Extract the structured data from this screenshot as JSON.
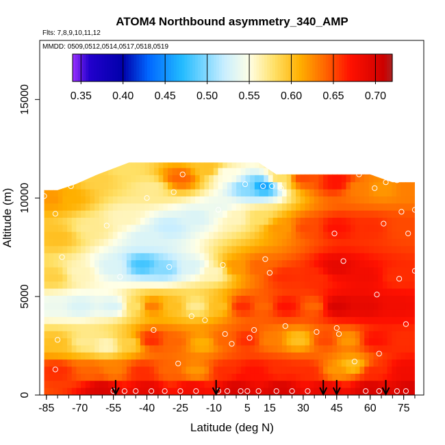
{
  "chart_data": {
    "type": "heatmap",
    "title": "ATOM4 Northbound asymmetry_340_AMP",
    "flights_label": "Flts: 7,8,9,10,11,12",
    "mmdd_label": "MMDD: 0509,0512,0514,0517,0518,0519",
    "xlabel": "Latitude (deg N)",
    "ylabel": "Altitude (m)",
    "xlim": [
      -88,
      84
    ],
    "ylim": [
      0,
      18000
    ],
    "x_ticks": [
      -85,
      -70,
      -55,
      -40,
      -25,
      -10,
      5,
      15,
      30,
      45,
      60,
      75
    ],
    "x_tick_labels": [
      "-85",
      "-70",
      "-55",
      "-40",
      "-25",
      "-10",
      "5",
      "15",
      "30",
      "45",
      "60",
      "75"
    ],
    "y_ticks": [
      0,
      5000,
      10000,
      15000
    ],
    "y_tick_labels": [
      "0",
      "5000",
      "10000",
      "15000"
    ],
    "colorbar": {
      "min": 0.34,
      "max": 0.72,
      "ticks": [
        0.35,
        0.4,
        0.45,
        0.5,
        0.55,
        0.6,
        0.65,
        0.7
      ],
      "tick_labels": [
        "0.35",
        "0.40",
        "0.45",
        "0.50",
        "0.55",
        "0.60",
        "0.65",
        "0.70"
      ],
      "stops": [
        {
          "v": 0.34,
          "c": "#9b30ff"
        },
        {
          "v": 0.36,
          "c": "#2200cc"
        },
        {
          "v": 0.4,
          "c": "#0000aa"
        },
        {
          "v": 0.43,
          "c": "#0066ff"
        },
        {
          "v": 0.47,
          "c": "#22bbff"
        },
        {
          "v": 0.52,
          "c": "#c8eeff"
        },
        {
          "v": 0.55,
          "c": "#ffffe6"
        },
        {
          "v": 0.58,
          "c": "#ffe066"
        },
        {
          "v": 0.61,
          "c": "#ffb000"
        },
        {
          "v": 0.64,
          "c": "#ff6600"
        },
        {
          "v": 0.67,
          "c": "#ff1100"
        },
        {
          "v": 0.71,
          "c": "#cc0000"
        },
        {
          "v": 0.72,
          "c": "#aa2222"
        }
      ]
    },
    "field_domain_alt": [
      {
        "x": -86,
        "top": 10400
      },
      {
        "x": -80,
        "top": 10400
      },
      {
        "x": -72,
        "top": 10700
      },
      {
        "x": -62,
        "top": 11200
      },
      {
        "x": -48,
        "top": 11800
      },
      {
        "x": -20,
        "top": 11800
      },
      {
        "x": 10,
        "top": 11800
      },
      {
        "x": 18,
        "top": 11200
      },
      {
        "x": 35,
        "top": 11200
      },
      {
        "x": 60,
        "top": 11200
      },
      {
        "x": 70,
        "top": 10800
      },
      {
        "x": 80,
        "top": 10800
      }
    ],
    "value_anchors": [
      {
        "x": -82,
        "y": 10000,
        "v": 0.62
      },
      {
        "x": -75,
        "y": 10000,
        "v": 0.61
      },
      {
        "x": -62,
        "y": 11000,
        "v": 0.59
      },
      {
        "x": -50,
        "y": 11500,
        "v": 0.58
      },
      {
        "x": -38,
        "y": 10500,
        "v": 0.57
      },
      {
        "x": -25,
        "y": 11000,
        "v": 0.64
      },
      {
        "x": -12,
        "y": 11500,
        "v": 0.6
      },
      {
        "x": -5,
        "y": 11200,
        "v": 0.55
      },
      {
        "x": 5,
        "y": 10500,
        "v": 0.5
      },
      {
        "x": 12,
        "y": 10600,
        "v": 0.46
      },
      {
        "x": 20,
        "y": 11000,
        "v": 0.58
      },
      {
        "x": 30,
        "y": 11000,
        "v": 0.65
      },
      {
        "x": 45,
        "y": 10800,
        "v": 0.67
      },
      {
        "x": 55,
        "y": 10500,
        "v": 0.63
      },
      {
        "x": 65,
        "y": 10500,
        "v": 0.62
      },
      {
        "x": 78,
        "y": 10500,
        "v": 0.63
      },
      {
        "x": -80,
        "y": 8000,
        "v": 0.6
      },
      {
        "x": -65,
        "y": 8500,
        "v": 0.57
      },
      {
        "x": -50,
        "y": 9000,
        "v": 0.56
      },
      {
        "x": -40,
        "y": 8000,
        "v": 0.53
      },
      {
        "x": -30,
        "y": 8500,
        "v": 0.52
      },
      {
        "x": -18,
        "y": 9000,
        "v": 0.53
      },
      {
        "x": -8,
        "y": 9500,
        "v": 0.54
      },
      {
        "x": 0,
        "y": 9000,
        "v": 0.56
      },
      {
        "x": 10,
        "y": 9000,
        "v": 0.58
      },
      {
        "x": 20,
        "y": 8500,
        "v": 0.62
      },
      {
        "x": 32,
        "y": 8500,
        "v": 0.65
      },
      {
        "x": 45,
        "y": 8500,
        "v": 0.67
      },
      {
        "x": 60,
        "y": 8500,
        "v": 0.66
      },
      {
        "x": 75,
        "y": 8500,
        "v": 0.65
      },
      {
        "x": -82,
        "y": 6000,
        "v": 0.59
      },
      {
        "x": -70,
        "y": 6200,
        "v": 0.56
      },
      {
        "x": -55,
        "y": 6500,
        "v": 0.53
      },
      {
        "x": -42,
        "y": 6600,
        "v": 0.48
      },
      {
        "x": -32,
        "y": 6400,
        "v": 0.5
      },
      {
        "x": -20,
        "y": 6500,
        "v": 0.53
      },
      {
        "x": -10,
        "y": 6200,
        "v": 0.56
      },
      {
        "x": 0,
        "y": 6500,
        "v": 0.62
      },
      {
        "x": 10,
        "y": 6500,
        "v": 0.64
      },
      {
        "x": 22,
        "y": 6000,
        "v": 0.66
      },
      {
        "x": 35,
        "y": 6000,
        "v": 0.66
      },
      {
        "x": 45,
        "y": 6500,
        "v": 0.69
      },
      {
        "x": 58,
        "y": 6000,
        "v": 0.68
      },
      {
        "x": 72,
        "y": 6000,
        "v": 0.66
      },
      {
        "x": -82,
        "y": 4500,
        "v": 0.54
      },
      {
        "x": -70,
        "y": 4500,
        "v": 0.53
      },
      {
        "x": -55,
        "y": 4500,
        "v": 0.53
      },
      {
        "x": -45,
        "y": 4500,
        "v": 0.58
      },
      {
        "x": -38,
        "y": 4500,
        "v": 0.63
      },
      {
        "x": -28,
        "y": 4500,
        "v": 0.6
      },
      {
        "x": -18,
        "y": 4500,
        "v": 0.57
      },
      {
        "x": -8,
        "y": 4500,
        "v": 0.6
      },
      {
        "x": 3,
        "y": 4500,
        "v": 0.66
      },
      {
        "x": 12,
        "y": 4500,
        "v": 0.64
      },
      {
        "x": 22,
        "y": 4500,
        "v": 0.67
      },
      {
        "x": 35,
        "y": 4500,
        "v": 0.64
      },
      {
        "x": 45,
        "y": 4500,
        "v": 0.7
      },
      {
        "x": 58,
        "y": 4500,
        "v": 0.69
      },
      {
        "x": 72,
        "y": 4500,
        "v": 0.68
      },
      {
        "x": -80,
        "y": 2600,
        "v": 0.6
      },
      {
        "x": -68,
        "y": 2700,
        "v": 0.57
      },
      {
        "x": -58,
        "y": 2500,
        "v": 0.56
      },
      {
        "x": -48,
        "y": 2600,
        "v": 0.59
      },
      {
        "x": -38,
        "y": 2800,
        "v": 0.66
      },
      {
        "x": -28,
        "y": 2700,
        "v": 0.64
      },
      {
        "x": -15,
        "y": 2600,
        "v": 0.61
      },
      {
        "x": -5,
        "y": 2800,
        "v": 0.64
      },
      {
        "x": 5,
        "y": 2800,
        "v": 0.66
      },
      {
        "x": 15,
        "y": 2800,
        "v": 0.63
      },
      {
        "x": 28,
        "y": 2800,
        "v": 0.6
      },
      {
        "x": 40,
        "y": 2800,
        "v": 0.65
      },
      {
        "x": 50,
        "y": 2800,
        "v": 0.62
      },
      {
        "x": 62,
        "y": 2800,
        "v": 0.67
      },
      {
        "x": 76,
        "y": 2800,
        "v": 0.66
      },
      {
        "x": -80,
        "y": 1200,
        "v": 0.66
      },
      {
        "x": -65,
        "y": 1200,
        "v": 0.64
      },
      {
        "x": -55,
        "y": 1200,
        "v": 0.63
      },
      {
        "x": -42,
        "y": 1200,
        "v": 0.66
      },
      {
        "x": -30,
        "y": 1200,
        "v": 0.64
      },
      {
        "x": -18,
        "y": 1200,
        "v": 0.62
      },
      {
        "x": -5,
        "y": 1200,
        "v": 0.66
      },
      {
        "x": 8,
        "y": 1200,
        "v": 0.67
      },
      {
        "x": 20,
        "y": 1200,
        "v": 0.66
      },
      {
        "x": 32,
        "y": 1200,
        "v": 0.66
      },
      {
        "x": 45,
        "y": 1200,
        "v": 0.62
      },
      {
        "x": 52,
        "y": 1500,
        "v": 0.6
      },
      {
        "x": 62,
        "y": 1200,
        "v": 0.66
      },
      {
        "x": 76,
        "y": 1200,
        "v": 0.68
      },
      {
        "x": -60,
        "y": 300,
        "v": 0.7
      },
      {
        "x": -40,
        "y": 300,
        "v": 0.69
      },
      {
        "x": -20,
        "y": 300,
        "v": 0.68
      },
      {
        "x": 0,
        "y": 300,
        "v": 0.7
      },
      {
        "x": 20,
        "y": 300,
        "v": 0.7
      },
      {
        "x": 40,
        "y": 300,
        "v": 0.69
      },
      {
        "x": 60,
        "y": 300,
        "v": 0.7
      },
      {
        "x": 78,
        "y": 300,
        "v": 0.7
      }
    ],
    "sample_points": [
      {
        "x": -86,
        "y": 10100
      },
      {
        "x": -81,
        "y": 9200
      },
      {
        "x": -74,
        "y": 10600
      },
      {
        "x": -78,
        "y": 7000
      },
      {
        "x": -80,
        "y": 2800
      },
      {
        "x": -81,
        "y": 1300
      },
      {
        "x": -58,
        "y": 8600
      },
      {
        "x": -52,
        "y": 6000
      },
      {
        "x": -40,
        "y": 10000
      },
      {
        "x": -30,
        "y": 6500
      },
      {
        "x": -28,
        "y": 10300
      },
      {
        "x": -24,
        "y": 11200
      },
      {
        "x": -37,
        "y": 3300
      },
      {
        "x": -26,
        "y": 1600
      },
      {
        "x": -20,
        "y": 4000
      },
      {
        "x": -14,
        "y": 3800
      },
      {
        "x": -8,
        "y": 9400
      },
      {
        "x": -6,
        "y": 6600
      },
      {
        "x": -2,
        "y": 2600
      },
      {
        "x": -5,
        "y": 3100
      },
      {
        "x": 4,
        "y": 10700
      },
      {
        "x": 12,
        "y": 10600
      },
      {
        "x": 16,
        "y": 10600
      },
      {
        "x": 20,
        "y": 10500
      },
      {
        "x": 15,
        "y": 6200
      },
      {
        "x": 13,
        "y": 6900
      },
      {
        "x": 8,
        "y": 3300
      },
      {
        "x": 6,
        "y": 2900
      },
      {
        "x": 22,
        "y": 3500
      },
      {
        "x": 36,
        "y": 3200
      },
      {
        "x": 45,
        "y": 3400
      },
      {
        "x": 46,
        "y": 3100
      },
      {
        "x": 44,
        "y": 8200
      },
      {
        "x": 48,
        "y": 6800
      },
      {
        "x": 53,
        "y": 1700
      },
      {
        "x": 55,
        "y": 11200
      },
      {
        "x": 62,
        "y": 10500
      },
      {
        "x": 66,
        "y": 8700
      },
      {
        "x": 67,
        "y": 10800
      },
      {
        "x": 72,
        "y": 10900
      },
      {
        "x": 74,
        "y": 9300
      },
      {
        "x": 77,
        "y": 8200
      },
      {
        "x": 80,
        "y": 9400
      },
      {
        "x": 64,
        "y": 2100
      },
      {
        "x": 63,
        "y": 5100
      },
      {
        "x": 73,
        "y": 5900
      },
      {
        "x": 76,
        "y": 3600
      },
      {
        "x": 80,
        "y": 6300
      },
      {
        "x": -55,
        "y": 200
      },
      {
        "x": -50,
        "y": 200
      },
      {
        "x": -45,
        "y": 200
      },
      {
        "x": -38,
        "y": 200
      },
      {
        "x": -32,
        "y": 200
      },
      {
        "x": -25,
        "y": 200
      },
      {
        "x": -18,
        "y": 200
      },
      {
        "x": -8,
        "y": 200
      },
      {
        "x": -4,
        "y": 200
      },
      {
        "x": 2,
        "y": 200
      },
      {
        "x": 5,
        "y": 200
      },
      {
        "x": 10,
        "y": 200
      },
      {
        "x": 18,
        "y": 200
      },
      {
        "x": 25,
        "y": 200
      },
      {
        "x": 32,
        "y": 200
      },
      {
        "x": 58,
        "y": 200
      },
      {
        "x": 64,
        "y": 200
      },
      {
        "x": 72,
        "y": 200
      },
      {
        "x": 76,
        "y": 200
      }
    ],
    "arrows_latitude": [
      -54,
      -9,
      39,
      45,
      67
    ]
  }
}
